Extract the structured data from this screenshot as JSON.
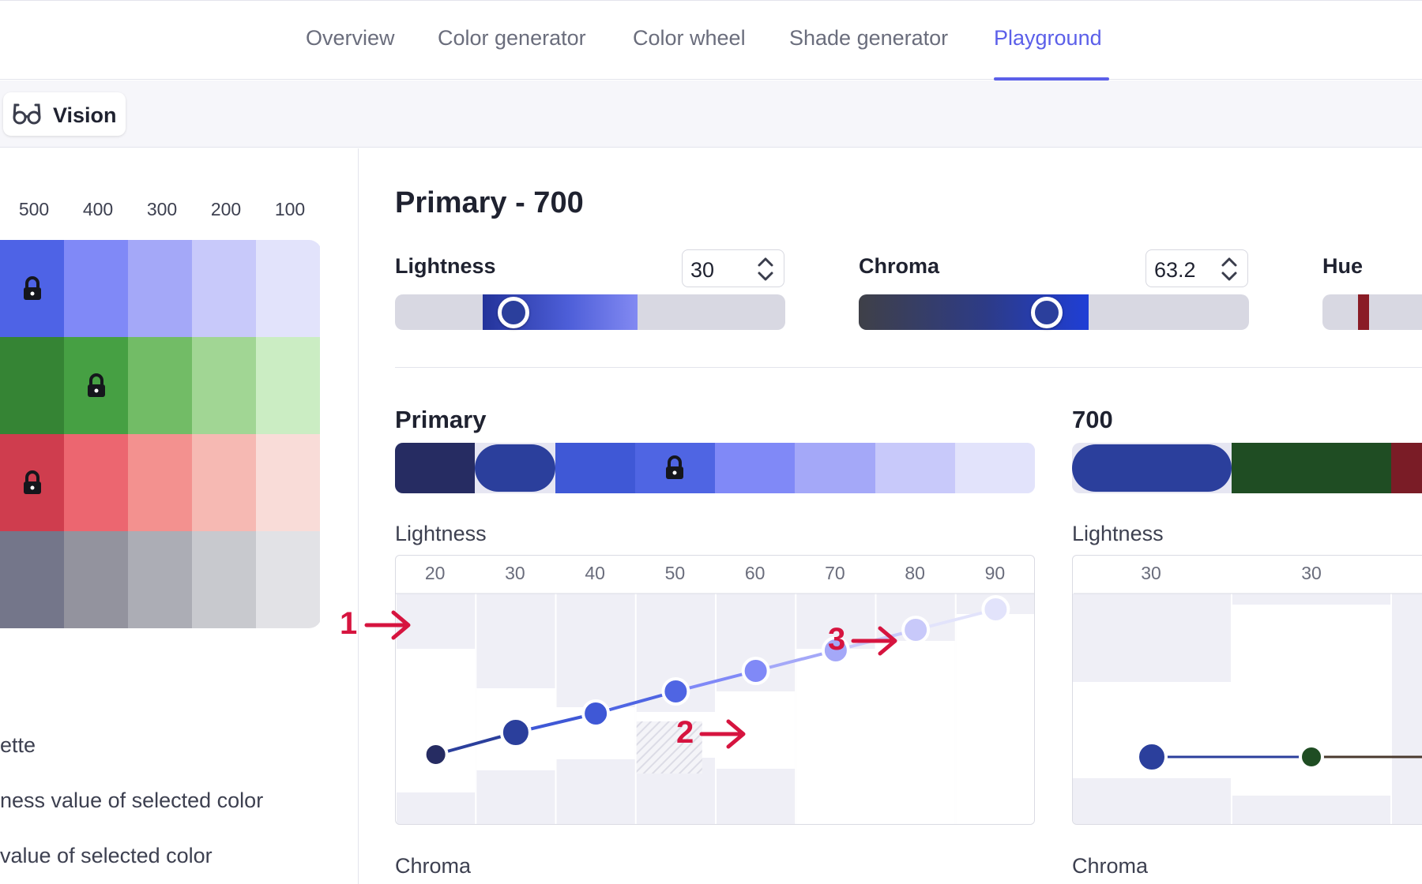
{
  "nav": {
    "tabs": [
      {
        "label": "Overview"
      },
      {
        "label": "Color generator"
      },
      {
        "label": "Color wheel"
      },
      {
        "label": "Shade generator"
      },
      {
        "label": "Playground"
      }
    ],
    "active_tab": "Playground",
    "accent": "#5b5fe9"
  },
  "toolbar": {
    "vision_label": "Vision"
  },
  "left": {
    "shades": [
      "500",
      "400",
      "300",
      "200",
      "100"
    ],
    "rows": [
      {
        "name": "primary",
        "colors": [
          "#4e63e6",
          "#8089f7",
          "#a4a8f8",
          "#c8c9fa",
          "#e2e3fb"
        ],
        "locked_index": 0
      },
      {
        "name": "green",
        "colors": [
          "#358434",
          "#46a043",
          "#72bc66",
          "#a1d694",
          "#cbedc3"
        ],
        "locked_index": 1
      },
      {
        "name": "red",
        "colors": [
          "#cf3d4e",
          "#ec6670",
          "#f3918f",
          "#f6b9b3",
          "#f9dcd8"
        ],
        "locked_index": 0
      },
      {
        "name": "gray",
        "colors": [
          "#74768a",
          "#93939e",
          "#acadb5",
          "#c8c9ce",
          "#e2e2e6"
        ],
        "locked_index": -1
      }
    ],
    "legend": [
      "ette",
      "ness value of selected color",
      "value of selected color"
    ]
  },
  "main": {
    "title": "Primary - 700",
    "controls": {
      "lightness": {
        "label": "Lightness",
        "value": "30"
      },
      "chroma": {
        "label": "Chroma",
        "value": "63.2"
      },
      "hue": {
        "label": "Hue"
      }
    },
    "palette": {
      "title": "Primary",
      "colors": [
        "#262c62",
        "#2b3f9c",
        "#3f58d6",
        "#4f65e3",
        "#8089f7",
        "#a4a8f8",
        "#c8c9fa",
        "#e2e3fb"
      ],
      "selected_index": 1,
      "locked_index": 3
    },
    "shade": {
      "title": "700",
      "colors": [
        "#2b3f9c",
        "#1f4d23",
        "#7a1c26"
      ]
    },
    "lightness_chart": {
      "label": "Lightness",
      "ticks": [
        "20",
        "30",
        "40",
        "50",
        "60",
        "70",
        "80",
        "90"
      ],
      "values": [
        20,
        30,
        35,
        40,
        45,
        50,
        55,
        60
      ]
    },
    "shade_chart": {
      "label": "Lightness",
      "ticks": [
        "30",
        "30"
      ]
    },
    "chroma_label": "Chroma",
    "shade_chroma_label": "Chroma"
  },
  "annotations": [
    "1",
    "2",
    "3"
  ]
}
